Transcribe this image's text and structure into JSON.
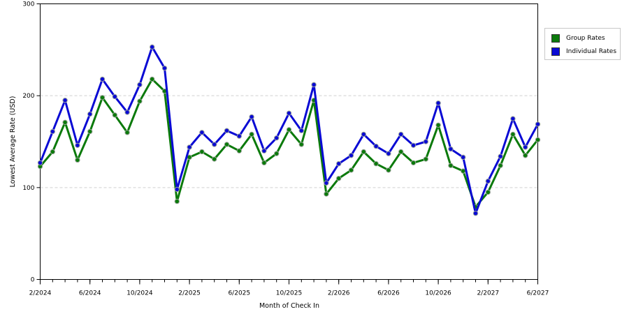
{
  "chart_data": {
    "type": "line",
    "xlabel": "Month of Check In",
    "ylabel": "Lowest Average Rate (USD)",
    "ylim": [
      0,
      300
    ],
    "yticks": [
      0,
      100,
      200,
      300
    ],
    "grid": true,
    "legend_position": "right",
    "xtick_labels": [
      "2/2024",
      "6/2024",
      "10/2024",
      "2/2025",
      "6/2025",
      "10/2025",
      "2/2026",
      "6/2026",
      "10/2026",
      "2/2027",
      "6/2027"
    ],
    "x": [
      "2/2024",
      "3/2024",
      "4/2024",
      "5/2024",
      "6/2024",
      "7/2024",
      "8/2024",
      "9/2024",
      "10/2024",
      "11/2024",
      "12/2024",
      "1/2025",
      "2/2025",
      "3/2025",
      "4/2025",
      "5/2025",
      "6/2025",
      "7/2025",
      "8/2025",
      "9/2025",
      "10/2025",
      "11/2025",
      "12/2025",
      "1/2026",
      "2/2026",
      "3/2026",
      "4/2026",
      "5/2026",
      "6/2026",
      "7/2026",
      "8/2026",
      "9/2026",
      "10/2026",
      "11/2026",
      "12/2026",
      "1/2027",
      "2/2027",
      "3/2027",
      "4/2027",
      "5/2027",
      "6/2027"
    ],
    "series": [
      {
        "name": "Group Rates",
        "color": "#0b7a0b",
        "values": [
          123,
          139,
          171,
          130,
          161,
          198,
          179,
          160,
          194,
          218,
          205,
          85,
          133,
          139,
          131,
          147,
          140,
          158,
          127,
          137,
          163,
          147,
          195,
          93,
          110,
          119,
          139,
          126,
          119,
          139,
          127,
          131,
          168,
          124,
          118,
          79,
          95,
          124,
          158,
          135,
          152
        ]
      },
      {
        "name": "Individual Rates",
        "color": "#0a0ad4",
        "values": [
          127,
          161,
          195,
          146,
          180,
          218,
          199,
          182,
          212,
          253,
          230,
          98,
          144,
          160,
          147,
          162,
          156,
          177,
          140,
          154,
          181,
          162,
          212,
          105,
          126,
          135,
          158,
          145,
          137,
          158,
          146,
          150,
          192,
          142,
          133,
          72,
          107,
          134,
          175,
          144,
          169
        ]
      }
    ]
  }
}
